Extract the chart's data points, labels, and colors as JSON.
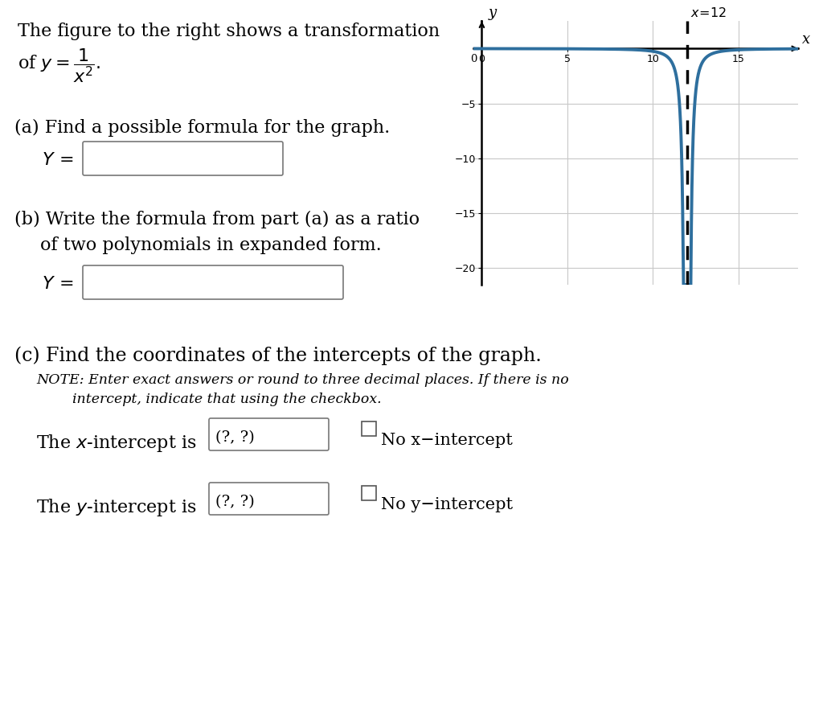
{
  "bg_color": "#ffffff",
  "text_color": "#000000",
  "graph_bg": "#ffffff",
  "curve_color": "#2e6f9e",
  "asymptote_color": "#000000",
  "grid_color": "#c8c8c8",
  "axis_color": "#000000",
  "curve_linewidth": 2.8,
  "asymptote_linewidth": 2.5,
  "vertical_asymptote": 12,
  "xlim": [
    -0.5,
    18.5
  ],
  "ylim": [
    -21.5,
    2.5
  ],
  "xticks": [
    0,
    5,
    10,
    15
  ],
  "yticks": [
    -20,
    -15,
    -10,
    -5
  ],
  "xlabel": "x",
  "ylabel": "y",
  "asymptote_label": "x = 12",
  "title_line1": "The figure to the right shows a transformation",
  "formula_text": "of $y = \\dfrac{1}{x^2}.$",
  "part_a_text": "(a) Find a possible formula for the graph.",
  "part_b_text1": "(b) Write the formula from part (a) as a ratio",
  "part_b_text2": "of two polynomials in expanded form.",
  "part_c_text": "(c) Find the coordinates of the intercepts of the graph.",
  "note_text1": "NOTE: Enter exact answers or round to three decimal places. If there is no",
  "note_text2": "intercept, indicate that using the checkbox.",
  "no_x_label": "No x−intercept",
  "no_y_label": "No y−intercept",
  "placeholder_text": "(?, ?)"
}
